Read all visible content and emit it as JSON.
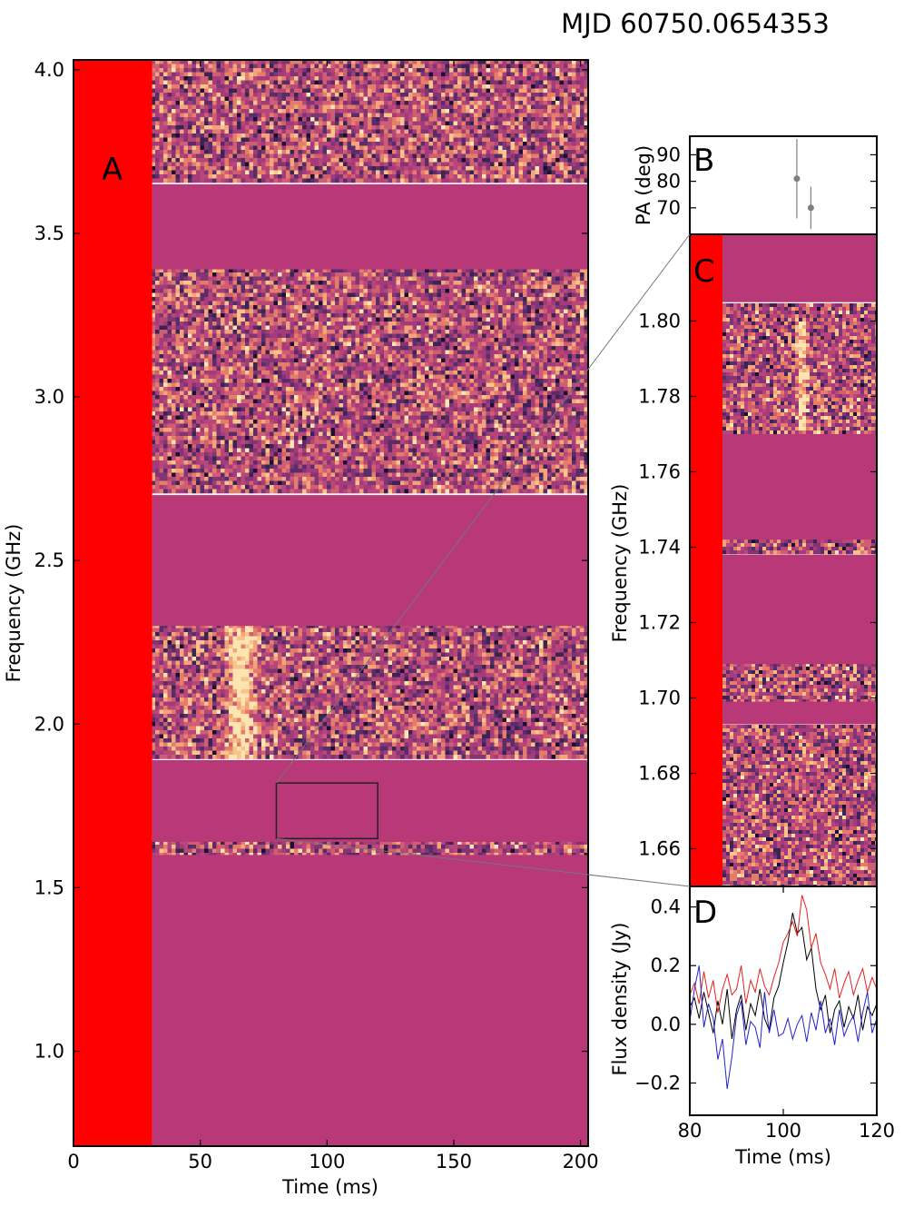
{
  "title": "MJD 60750.0654353",
  "colors": {
    "flagged": "#ff0000",
    "masked": "#b83878",
    "noise_dark": "#3a2452",
    "noise_mid": "#b0407a",
    "noise_bright": "#f8c48c",
    "burst": "#fff2c8",
    "stokes_I": "#000000",
    "stokes_L": "#e32020",
    "stokes_V": "#2222cc",
    "pa_point": "#7f7f7f"
  },
  "chart_data": [
    {
      "panel": "A",
      "type": "heatmap",
      "xlabel": "Time (ms)",
      "ylabel": "Frequency (GHz)",
      "xlim": [
        0,
        203
      ],
      "ylim": [
        0.71,
        4.03
      ],
      "xticks": [
        0,
        50,
        100,
        150,
        200
      ],
      "xtick_labels": [
        "0",
        "50",
        "100",
        "150",
        "200"
      ],
      "yticks": [
        1.0,
        1.5,
        2.0,
        2.5,
        3.0,
        3.5,
        4.0
      ],
      "ytick_labels": [
        "1.0",
        "1.5",
        "2.0",
        "2.5",
        "3.0",
        "3.5",
        "4.0"
      ],
      "flagged_time_range_ms": [
        0,
        31
      ],
      "masked_bands_GHz": [
        [
          3.39,
          3.65
        ],
        [
          2.3,
          2.7
        ],
        [
          1.64,
          1.89
        ],
        [
          0.71,
          1.6
        ]
      ],
      "burst": {
        "time_ms": 66,
        "freq_range_GHz": [
          1.88,
          2.3
        ]
      },
      "inset_box": {
        "time_ms": [
          80,
          120
        ],
        "freq_GHz": [
          1.65,
          1.82
        ]
      }
    },
    {
      "panel": "B",
      "type": "scatter",
      "ylabel": "PA (deg)",
      "xlim": [
        80,
        120
      ],
      "ylim": [
        60,
        97
      ],
      "yticks": [
        70,
        80,
        90
      ],
      "ytick_labels": [
        "70",
        "80",
        "90"
      ],
      "points": [
        {
          "x": 102.9,
          "y": 81,
          "yerr": 15
        },
        {
          "x": 105.9,
          "y": 70,
          "yerr": 8
        }
      ]
    },
    {
      "panel": "C",
      "type": "heatmap",
      "ylabel": "Frequency (GHz)",
      "xlim": [
        80,
        120
      ],
      "ylim": [
        1.65,
        1.823
      ],
      "yticks": [
        1.66,
        1.68,
        1.7,
        1.72,
        1.74,
        1.76,
        1.78,
        1.8
      ],
      "ytick_labels": [
        "1.66",
        "1.68",
        "1.70",
        "1.72",
        "1.74",
        "1.76",
        "1.78",
        "1.80"
      ],
      "flagged_time_range_ms": [
        80,
        87
      ],
      "masked_bands_GHz": [
        [
          1.805,
          1.823
        ],
        [
          1.742,
          1.77
        ],
        [
          1.709,
          1.738
        ],
        [
          1.693,
          1.699
        ]
      ],
      "burst": {
        "time_ms": 104,
        "freq_range_GHz": [
          1.771,
          1.8
        ]
      }
    },
    {
      "panel": "D",
      "type": "line",
      "xlabel": "Time (ms)",
      "ylabel": "Flux density (Jy)",
      "xlim": [
        80,
        120
      ],
      "ylim": [
        -0.31,
        0.47
      ],
      "xticks": [
        80,
        100,
        120
      ],
      "xtick_labels": [
        "80",
        "100",
        "120"
      ],
      "yticks": [
        -0.2,
        0.0,
        0.2,
        0.4
      ],
      "ytick_labels": [
        "−0.2",
        "0.0",
        "0.2",
        "0.4"
      ],
      "x": [
        80,
        81,
        82,
        83,
        84,
        85,
        86,
        87,
        88,
        89,
        90,
        91,
        92,
        93,
        94,
        95,
        96,
        97,
        98,
        99,
        100,
        101,
        102,
        103,
        104,
        105,
        106,
        107,
        108,
        109,
        110,
        111,
        112,
        113,
        114,
        115,
        116,
        117,
        118,
        119,
        120
      ],
      "series": [
        {
          "color": "#000000",
          "values": [
            0.06,
            0.09,
            0.02,
            0.11,
            0.04,
            -0.03,
            0.08,
            0.0,
            0.12,
            -0.05,
            0.05,
            0.1,
            -0.02,
            0.07,
            0.03,
            0.12,
            0.02,
            -0.02,
            0.09,
            0.13,
            0.21,
            0.28,
            0.38,
            0.31,
            0.33,
            0.22,
            0.26,
            0.12,
            0.05,
            0.1,
            -0.03,
            0.05,
            0.08,
            -0.01,
            0.06,
            0.02,
            0.1,
            -0.02,
            0.06,
            0.03,
            0.07
          ]
        },
        {
          "color": "#e32020",
          "values": [
            0.1,
            0.14,
            0.07,
            0.18,
            0.09,
            0.15,
            0.04,
            0.12,
            0.17,
            0.1,
            0.12,
            0.2,
            0.07,
            0.15,
            0.11,
            0.19,
            0.13,
            0.1,
            0.16,
            0.21,
            0.28,
            0.31,
            0.35,
            0.3,
            0.44,
            0.39,
            0.26,
            0.31,
            0.21,
            0.17,
            0.12,
            0.19,
            0.09,
            0.14,
            0.18,
            0.1,
            0.15,
            0.19,
            0.11,
            0.16,
            0.12
          ]
        },
        {
          "color": "#2222cc",
          "values": [
            0.01,
            0.12,
            0.2,
            -0.01,
            0.07,
            0.02,
            -0.12,
            -0.05,
            -0.22,
            -0.11,
            0.03,
            0.08,
            -0.07,
            0.01,
            -0.01,
            -0.08,
            0.11,
            -0.03,
            0.05,
            -0.04,
            -0.03,
            0.02,
            -0.05,
            0.0,
            0.03,
            -0.06,
            0.04,
            -0.02,
            0.08,
            -0.03,
            0.02,
            -0.07,
            0.05,
            -0.04,
            0.0,
            0.03,
            -0.06,
            0.04,
            0.11,
            -0.03,
            0.02
          ]
        }
      ]
    }
  ],
  "panel_labels": [
    "A",
    "B",
    "C",
    "D"
  ]
}
